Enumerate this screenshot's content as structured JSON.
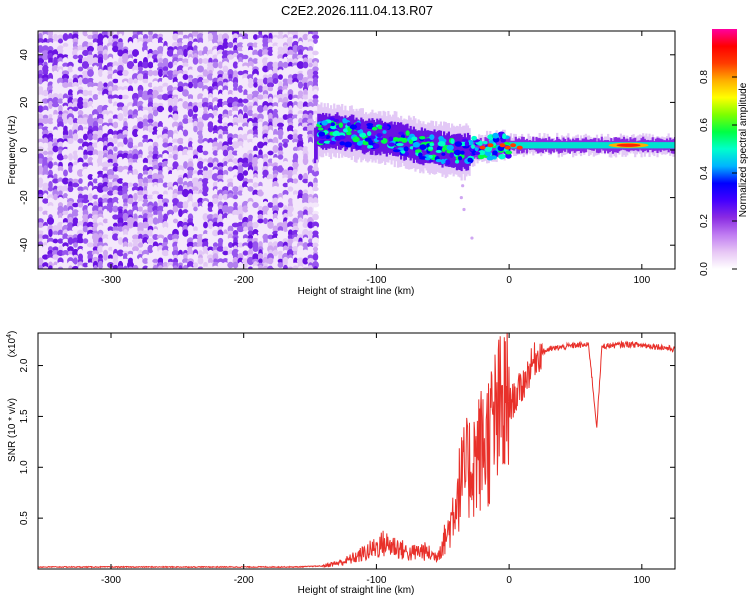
{
  "title": "C2E2.2026.111.04.13.R07",
  "chart_data": [
    {
      "type": "heatmap",
      "name": "spectrogram",
      "xlabel": "Height of straight line (km)",
      "ylabel": "Frequency (Hz)",
      "xlim": [
        -355,
        125
      ],
      "ylim": [
        -50,
        50
      ],
      "xticks": [
        -300,
        -200,
        -100,
        0,
        100
      ],
      "yticks": [
        -40,
        -20,
        0,
        20,
        40
      ],
      "noise_region": {
        "x_range": [
          -355,
          -147
        ],
        "description": "uniform broadband noise"
      },
      "signal_track": [
        {
          "x": -145,
          "f": 8
        },
        {
          "x": -130,
          "f": 8
        },
        {
          "x": -110,
          "f": 6
        },
        {
          "x": -90,
          "f": 5
        },
        {
          "x": -70,
          "f": 2
        },
        {
          "x": -50,
          "f": 0
        },
        {
          "x": -35,
          "f": -1
        },
        {
          "x": -20,
          "f": 1
        },
        {
          "x": 0,
          "f": 2
        },
        {
          "x": 40,
          "f": 2
        },
        {
          "x": 90,
          "f": 2
        },
        {
          "x": 125,
          "f": 2
        }
      ],
      "colorbar": {
        "label": "Normalized spectral amplitude",
        "range": [
          0.0,
          1.0
        ],
        "ticks": [
          "0.0",
          "0.2",
          "0.4",
          "0.6",
          "0.8"
        ],
        "tick_values": [
          0.0,
          0.2,
          0.4,
          0.6,
          0.8
        ],
        "colors": [
          "#ffffff",
          "#e7c6f5",
          "#c07cf2",
          "#8a2be2",
          "#4400ff",
          "#0000ff",
          "#00b4ff",
          "#00ffcc",
          "#00ff44",
          "#7dff00",
          "#ffff00",
          "#ffae00",
          "#ff3c00",
          "#ff0000",
          "#ff00a0"
        ]
      }
    },
    {
      "type": "line",
      "name": "snr",
      "xlabel": "Height of straight line (km)",
      "ylabel": "SNR (10 * v/v)",
      "scale_label": "(x10",
      "scale_exp": "4",
      "scale_close": ")",
      "xlim": [
        -355,
        125
      ],
      "ylim": [
        0,
        2.32
      ],
      "xticks": [
        -300,
        -200,
        -100,
        0,
        100
      ],
      "yticks": [
        0.5,
        1.0,
        1.5,
        2.0
      ],
      "ytick_labels": [
        "0.5",
        "1.0",
        "1.5",
        "2.0"
      ],
      "series": [
        {
          "name": "SNR",
          "color": "#e8302a",
          "x": [
            -355,
            -300,
            -250,
            -200,
            -160,
            -140,
            -125,
            -115,
            -105,
            -95,
            -85,
            -75,
            -65,
            -55,
            -50,
            -45,
            -40,
            -35,
            -30,
            -25,
            -20,
            -15,
            -10,
            -5,
            0,
            5,
            10,
            15,
            20,
            25,
            30,
            40,
            50,
            60,
            66,
            70,
            80,
            90,
            100,
            110,
            120,
            125
          ],
          "y": [
            0.02,
            0.02,
            0.02,
            0.02,
            0.02,
            0.03,
            0.07,
            0.12,
            0.18,
            0.25,
            0.22,
            0.15,
            0.18,
            0.12,
            0.25,
            0.4,
            0.7,
            0.9,
            1.0,
            1.1,
            1.2,
            1.3,
            1.45,
            1.55,
            1.6,
            1.7,
            1.8,
            1.95,
            2.08,
            2.13,
            2.16,
            2.18,
            2.2,
            2.2,
            1.4,
            2.19,
            2.2,
            2.21,
            2.2,
            2.19,
            2.17,
            2.16
          ]
        }
      ]
    }
  ],
  "colors": {
    "axis": "#000000",
    "snr_line": "#e8302a"
  }
}
